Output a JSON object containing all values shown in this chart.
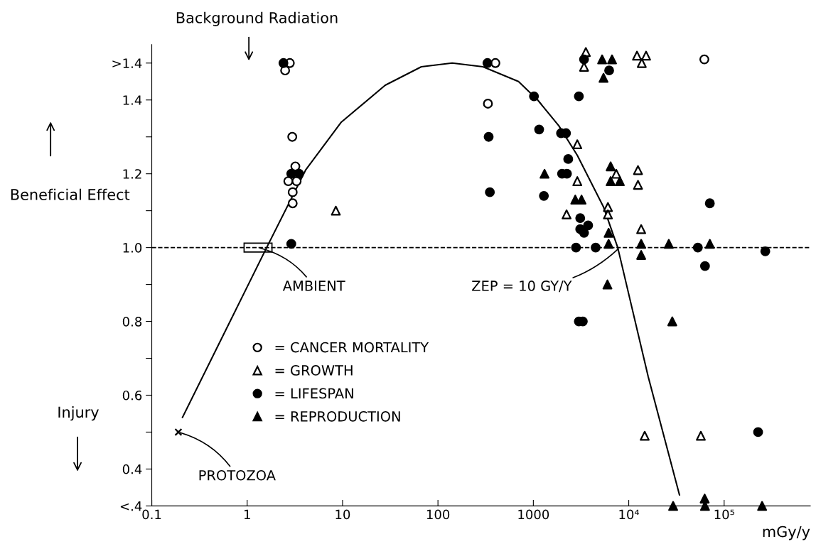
{
  "chart_data": {
    "type": "scatter",
    "xlabel": "mGy/y",
    "log": "x",
    "xlim": [
      0.1,
      800000
    ],
    "xticks": [
      0.1,
      1,
      10,
      100,
      1000,
      {
        "value": 10000,
        "label": "10⁴"
      },
      {
        "value": 100000,
        "label": "10⁵"
      }
    ],
    "ylim": [
      0.3,
      1.55
    ],
    "yticks": [
      {
        "value": 0.3,
        "label": "<.4"
      },
      0.4,
      {
        "value": 0.5,
        "label": null
      },
      0.6,
      {
        "value": 0.7,
        "label": null
      },
      0.8,
      {
        "value": 0.9,
        "label": null
      },
      {
        "value": 1.0,
        "label": "1.0"
      },
      {
        "value": 1.1,
        "label": null
      },
      1.2,
      {
        "value": 1.3,
        "label": null
      },
      1.4,
      {
        "value": 1.5,
        "label": ">1.4"
      }
    ],
    "grid": false,
    "legend": "lower center",
    "series": [
      {
        "name": "= CANCER MORTALITY",
        "color": "#ffffff",
        "marker": "circle",
        "x": [
          2.8,
          2.5,
          2.97,
          3.2,
          2.7,
          3.3,
          3.0,
          3.0,
          400,
          334,
          62000
        ],
        "values": [
          1.5,
          1.48,
          1.3,
          1.22,
          1.18,
          1.18,
          1.15,
          1.12,
          1.5,
          1.39,
          1.51
        ]
      },
      {
        "name": "= GROWTH",
        "color": "#ffffff",
        "marker": "triangle",
        "x": [
          8.5,
          3550,
          3400,
          12200,
          15200,
          13700,
          2890,
          2890,
          7400,
          12500,
          12500,
          2230,
          6050,
          6050,
          13500,
          14700,
          57000
        ],
        "values": [
          1.1,
          1.53,
          1.49,
          1.52,
          1.52,
          1.5,
          1.28,
          1.18,
          1.2,
          1.21,
          1.17,
          1.09,
          1.11,
          1.09,
          1.05,
          0.49,
          0.49
        ]
      },
      {
        "name": "= LIFESPAN",
        "color": "#000000",
        "marker": "circle",
        "x": [
          2.4,
          2.9,
          3.5,
          2.9,
          330,
          340,
          350,
          1015,
          1150,
          1290,
          3400,
          6230,
          3000,
          1950,
          2200,
          2320,
          2000,
          2250,
          70800,
          3100,
          3100,
          3750,
          3400,
          2800,
          4500,
          53000,
          270000,
          63000,
          3000,
          3300,
          227000
        ],
        "values": [
          1.5,
          1.2,
          1.2,
          1.01,
          1.5,
          1.3,
          1.15,
          1.41,
          1.32,
          1.14,
          1.51,
          1.48,
          1.41,
          1.31,
          1.31,
          1.24,
          1.2,
          1.2,
          1.12,
          1.08,
          1.05,
          1.06,
          1.04,
          1.0,
          1.0,
          1.0,
          0.99,
          0.95,
          0.8,
          0.8,
          0.5
        ]
      },
      {
        "name": "= REPRODUCTION",
        "color": "#000000",
        "marker": "triangle",
        "x": [
          1310,
          5260,
          6680,
          5440,
          6460,
          6460,
          8070,
          2750,
          3200,
          6150,
          6150,
          13500,
          13500,
          26300,
          70800,
          5980,
          28600,
          29200,
          62500,
          63000,
          250000
        ],
        "values": [
          1.2,
          1.51,
          1.51,
          1.46,
          1.22,
          1.18,
          1.18,
          1.13,
          1.13,
          1.04,
          1.01,
          1.01,
          0.98,
          1.01,
          1.01,
          0.9,
          0.8,
          0.3,
          0.32,
          0.3,
          0.3
        ]
      },
      {
        "type": "scatter",
        "color": "#000000",
        "marker": "cross",
        "x": [
          0.19
        ],
        "values": [
          0.5
        ]
      },
      {
        "type": "line",
        "color": "#000000",
        "marker": "none",
        "line_style": "solid",
        "x": [
          0.21,
          1.6,
          4.1,
          9.7,
          28,
          67,
          141,
          296,
          698,
          1110,
          1850,
          2890,
          5440,
          7670,
          16000,
          34000
        ],
        "values": [
          0.54,
          1.0,
          1.21,
          1.34,
          1.44,
          1.49,
          1.5,
          1.49,
          1.45,
          1.4,
          1.33,
          1.25,
          1.11,
          1.0,
          0.65,
          0.33
        ]
      }
    ],
    "ref_lines": [
      {
        "axis": "y",
        "value": 1.0,
        "color": "#000000",
        "line_style": "dashed"
      }
    ],
    "annotations": [
      "Background Radiation",
      {
        "text": "AMBIENT",
        "x": 1.3,
        "y": 1.0
      },
      {
        "text": "ZEP = 10 GY/Y",
        "x": 8000,
        "y": 1.0
      },
      {
        "text": "PROTOZOA",
        "x": 0.19,
        "y": 0.5
      },
      "Beneficial Effect",
      "Injury"
    ]
  }
}
